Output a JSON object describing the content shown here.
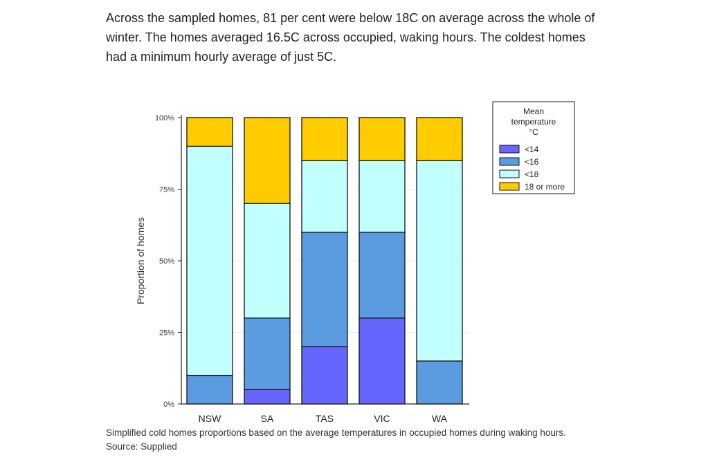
{
  "article": {
    "paragraph": "Across the sampled homes, 81 per cent were below 18C on average across the whole of winter. The homes averaged 16.5C across occupied, waking hours. The coldest homes had a minimum hourly average of just 5C."
  },
  "caption": "Simplified cold homes proportions based on the average temperatures in occupied homes during waking hours. Source: Supplied",
  "chart_data": {
    "type": "bar",
    "stacked": true,
    "categories": [
      "NSW",
      "SA",
      "TAS",
      "VIC",
      "WA"
    ],
    "ylabel": "Proportion of homes",
    "xlabel": "",
    "ylim": [
      0,
      100
    ],
    "yticks": [
      0,
      25,
      50,
      75,
      100
    ],
    "ytick_labels": [
      "0%",
      "25%",
      "50%",
      "75%",
      "100%"
    ],
    "legend_title": [
      "Mean",
      "temperature",
      "°C"
    ],
    "legend_position": "top-right",
    "grid": true,
    "series": [
      {
        "name": "<14",
        "color": "#6666ff",
        "values": [
          0,
          5,
          20,
          30,
          0
        ]
      },
      {
        "name": "<16",
        "color": "#5b9bdf",
        "values": [
          10,
          25,
          40,
          30,
          15
        ]
      },
      {
        "name": "<18",
        "color": "#c2ffff",
        "values": [
          80,
          40,
          25,
          25,
          70
        ]
      },
      {
        "name": "18 or more",
        "color": "#ffcc00",
        "values": [
          10,
          30,
          15,
          15,
          15
        ]
      }
    ]
  }
}
